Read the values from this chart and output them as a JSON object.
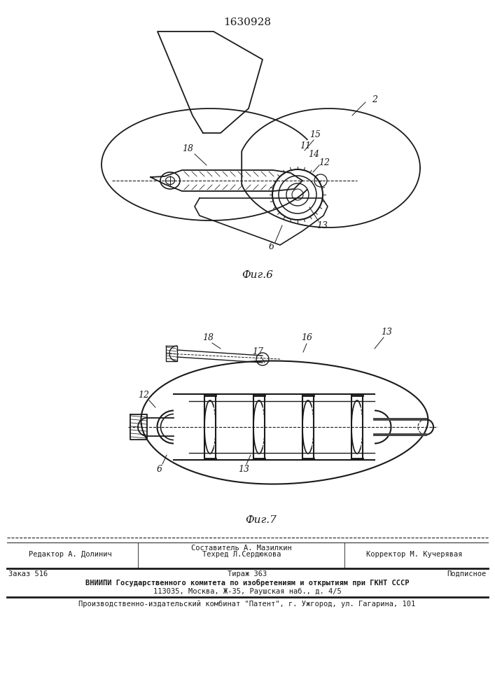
{
  "patent_number": "1630928",
  "fig6_label": "Фиг.6",
  "fig7_label": "Фиг.7",
  "footer": {
    "line1_left": "Редактор А. Долинич",
    "line1_center_top": "Составитель А. Мазилкин",
    "line1_center_bot": "Техред Л.Сердюкова",
    "line1_right": "Корректор М. Кучерявая",
    "line2_left": "Заказ 516",
    "line2_center": "Тираж 363",
    "line2_right": "Подписное",
    "line3": "ВНИИПИ Государственного комитета по изобретениям и открытиям при ГКНТ СССР",
    "line4": "113035, Москва, Ж-35, Раушская наб., д. 4/5",
    "line5": "Производственно-издательский комбинат \"Патент\", г. Ужгород, ул. Гагарина, 101"
  },
  "bg_color": "#ffffff",
  "line_color": "#1a1a1a"
}
